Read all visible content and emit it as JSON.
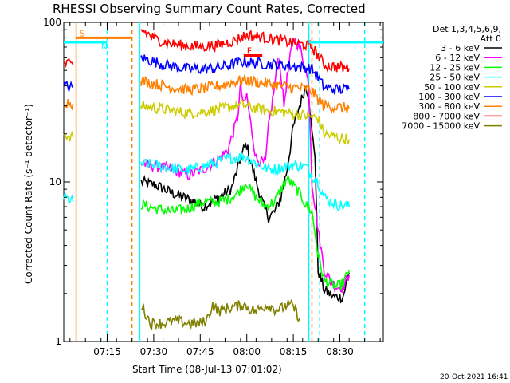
{
  "chart_data": {
    "type": "line",
    "title": "RHESSI Observing Summary Count Rates, Corrected",
    "xlabel": "Start Time (08-Jul-13 07:01:02)",
    "ylabel": "Corrected Count Rate (s⁻¹ detector⁻¹)",
    "yscale": "log",
    "ylim": [
      1,
      100
    ],
    "xlim_minutes": [
      0,
      103
    ],
    "xticks": [
      "07:15",
      "07:30",
      "07:45",
      "08:00",
      "08:15",
      "08:30"
    ],
    "xtick_minutes": [
      14,
      29,
      44,
      59,
      74,
      89
    ],
    "yticks": [
      "1",
      "10",
      "100"
    ],
    "yticks_values": [
      1,
      10,
      100
    ],
    "legend": {
      "header": [
        "Det 1,3,4,5,6,9,",
        "Att 0"
      ],
      "placement": "right"
    },
    "generated": "20-Oct-2021 16:41",
    "series": [
      {
        "name": "3 - 6 keV",
        "color": "#000000",
        "points": [
          [
            25,
            10
          ],
          [
            30,
            9.5
          ],
          [
            35,
            8.5
          ],
          [
            40,
            7.8
          ],
          [
            45,
            7
          ],
          [
            50,
            8
          ],
          [
            54,
            9
          ],
          [
            56,
            12
          ],
          [
            58,
            16
          ],
          [
            59,
            17
          ],
          [
            60,
            14
          ],
          [
            62,
            10
          ],
          [
            64,
            7.5
          ],
          [
            66,
            6
          ],
          [
            68,
            6.5
          ],
          [
            70,
            8
          ],
          [
            72,
            12
          ],
          [
            74,
            22
          ],
          [
            76,
            30
          ],
          [
            78,
            40
          ],
          [
            79,
            35
          ],
          [
            80,
            20
          ],
          [
            81,
            15
          ],
          [
            82,
            2.8
          ],
          [
            84,
            2.1
          ],
          [
            87,
            1.9
          ],
          [
            90,
            1.9
          ],
          [
            92,
            2.7
          ]
        ]
      },
      {
        "name": "6 - 12 keV",
        "color": "#ff00ff",
        "points": [
          [
            25,
            13
          ],
          [
            30,
            12.5
          ],
          [
            35,
            12
          ],
          [
            40,
            11
          ],
          [
            45,
            12
          ],
          [
            50,
            14
          ],
          [
            53,
            16
          ],
          [
            56,
            25
          ],
          [
            57,
            40
          ],
          [
            58,
            30
          ],
          [
            59,
            35
          ],
          [
            60,
            25
          ],
          [
            62,
            14
          ],
          [
            65,
            13
          ],
          [
            66,
            22
          ],
          [
            68,
            40
          ],
          [
            69,
            60
          ],
          [
            70,
            48
          ],
          [
            71,
            30
          ],
          [
            72,
            45
          ],
          [
            73,
            60
          ],
          [
            74,
            80
          ],
          [
            76,
            70
          ],
          [
            77,
            60
          ],
          [
            78,
            50
          ],
          [
            79,
            40
          ],
          [
            80,
            10
          ],
          [
            82,
            5
          ],
          [
            84,
            2.8
          ],
          [
            86,
            2.4
          ],
          [
            88,
            2.2
          ],
          [
            90,
            2.2
          ],
          [
            92,
            2.6
          ]
        ]
      },
      {
        "name": "12 - 25 keV",
        "color": "#00ff00",
        "points": [
          [
            25,
            7.2
          ],
          [
            30,
            6.8
          ],
          [
            35,
            6.5
          ],
          [
            40,
            6.8
          ],
          [
            45,
            7.5
          ],
          [
            50,
            7.5
          ],
          [
            53,
            7.8
          ],
          [
            56,
            8.5
          ],
          [
            58,
            9.5
          ],
          [
            59,
            10
          ],
          [
            60,
            9
          ],
          [
            62,
            8
          ],
          [
            65,
            7
          ],
          [
            68,
            7.5
          ],
          [
            70,
            9
          ],
          [
            72,
            10.5
          ],
          [
            74,
            9.5
          ],
          [
            76,
            8.5
          ],
          [
            78,
            7.2
          ],
          [
            80,
            6.5
          ],
          [
            82,
            3.5
          ],
          [
            84,
            2.4
          ],
          [
            86,
            2.3
          ],
          [
            88,
            2.2
          ],
          [
            90,
            2.3
          ],
          [
            92,
            2.8
          ]
        ]
      },
      {
        "name": "25 - 50 keV",
        "color": "#00ffff",
        "points": [
          [
            0,
            8
          ],
          [
            3,
            7.5
          ],
          [
            25,
            13
          ],
          [
            30,
            12.8
          ],
          [
            35,
            12.2
          ],
          [
            40,
            11.8
          ],
          [
            45,
            12.5
          ],
          [
            50,
            13.5
          ],
          [
            55,
            14.2
          ],
          [
            58,
            14.5
          ],
          [
            60,
            13.8
          ],
          [
            63,
            12.8
          ],
          [
            66,
            12
          ],
          [
            70,
            12.2
          ],
          [
            74,
            12.8
          ],
          [
            78,
            12.5
          ],
          [
            80,
            11
          ],
          [
            82,
            10
          ],
          [
            84,
            8
          ],
          [
            88,
            7.2
          ],
          [
            92,
            7
          ]
        ]
      },
      {
        "name": "50 - 100 keV",
        "color": "#cccc00",
        "points": [
          [
            0,
            20
          ],
          [
            3,
            19
          ],
          [
            25,
            30
          ],
          [
            30,
            29
          ],
          [
            35,
            28
          ],
          [
            40,
            27
          ],
          [
            45,
            27.5
          ],
          [
            50,
            28.5
          ],
          [
            55,
            30
          ],
          [
            58,
            30.5
          ],
          [
            60,
            29.5
          ],
          [
            65,
            28
          ],
          [
            70,
            27.5
          ],
          [
            74,
            26.8
          ],
          [
            78,
            26
          ],
          [
            82,
            25
          ],
          [
            84,
            20
          ],
          [
            88,
            19
          ],
          [
            92,
            18.5
          ]
        ]
      },
      {
        "name": "100 - 300 keV",
        "color": "#0000ff",
        "points": [
          [
            0,
            40
          ],
          [
            3,
            39
          ],
          [
            25,
            60
          ],
          [
            30,
            56
          ],
          [
            35,
            53
          ],
          [
            40,
            51
          ],
          [
            45,
            51
          ],
          [
            50,
            52
          ],
          [
            55,
            55
          ],
          [
            58,
            57
          ],
          [
            60,
            56
          ],
          [
            65,
            55
          ],
          [
            70,
            54
          ],
          [
            74,
            53
          ],
          [
            78,
            52
          ],
          [
            80,
            51
          ],
          [
            82,
            45
          ],
          [
            84,
            39
          ],
          [
            88,
            38
          ],
          [
            92,
            38
          ]
        ]
      },
      {
        "name": "300 - 800 keV",
        "color": "#ff8000",
        "points": [
          [
            0,
            32
          ],
          [
            3,
            31
          ],
          [
            25,
            43
          ],
          [
            30,
            41
          ],
          [
            35,
            39
          ],
          [
            40,
            38
          ],
          [
            45,
            38.5
          ],
          [
            50,
            40
          ],
          [
            55,
            42.5
          ],
          [
            58,
            43.5
          ],
          [
            60,
            43
          ],
          [
            65,
            41.5
          ],
          [
            70,
            40
          ],
          [
            74,
            39
          ],
          [
            78,
            38.5
          ],
          [
            80,
            37
          ],
          [
            82,
            33
          ],
          [
            84,
            30
          ],
          [
            88,
            29.5
          ],
          [
            92,
            29
          ]
        ]
      },
      {
        "name": "800 - 7000 keV",
        "color": "#ff0000",
        "points": [
          [
            0,
            55
          ],
          [
            3,
            54
          ],
          [
            25,
            90
          ],
          [
            30,
            78
          ],
          [
            35,
            73
          ],
          [
            40,
            71
          ],
          [
            45,
            70.5
          ],
          [
            50,
            72
          ],
          [
            55,
            77
          ],
          [
            58,
            82
          ],
          [
            60,
            83
          ],
          [
            65,
            80
          ],
          [
            70,
            77
          ],
          [
            74,
            74
          ],
          [
            78,
            72
          ],
          [
            80,
            70
          ],
          [
            82,
            62
          ],
          [
            84,
            54
          ],
          [
            88,
            52.5
          ],
          [
            92,
            51.5
          ]
        ]
      },
      {
        "name": "7000 - 15000 keV",
        "color": "#808000",
        "points": [
          [
            25,
            1.7
          ],
          [
            28,
            1.3
          ],
          [
            32,
            1.3
          ],
          [
            36,
            1.35
          ],
          [
            40,
            1.3
          ],
          [
            44,
            1.3
          ],
          [
            46,
            1.35
          ],
          [
            48,
            1.7
          ],
          [
            50,
            1.55
          ],
          [
            52,
            1.6
          ],
          [
            55,
            1.65
          ],
          [
            58,
            1.7
          ],
          [
            60,
            1.6
          ],
          [
            62,
            1.55
          ],
          [
            64,
            1.65
          ],
          [
            66,
            1.7
          ],
          [
            68,
            1.6
          ],
          [
            70,
            1.6
          ],
          [
            72,
            1.7
          ],
          [
            74,
            1.65
          ],
          [
            76,
            1.4
          ]
        ]
      }
    ],
    "bars": [
      {
        "label": "S",
        "color": "#ff8000",
        "x": [
          4,
          22
        ],
        "y": 80
      },
      {
        "label": "N",
        "color": "#00ffff",
        "x": [
          -5,
          14
        ],
        "y": 75
      },
      {
        "label": "F",
        "color": "#ff0000",
        "x": [
          58,
          64
        ],
        "y": 62
      },
      {
        "label": "",
        "color": "#00ffff",
        "x": [
          79,
          103
        ],
        "y": 75
      }
    ],
    "vlines": [
      {
        "x": 4,
        "color": "#ff8000",
        "style": "solid"
      },
      {
        "x": 14,
        "color": "#00ffff",
        "style": "dashed"
      },
      {
        "x": 22,
        "color": "#ff8000",
        "style": "dashed"
      },
      {
        "x": 24.5,
        "color": "#00ffff",
        "style": "solid"
      },
      {
        "x": 79,
        "color": "#00ffff",
        "style": "solid"
      },
      {
        "x": 80,
        "color": "#ff8000",
        "style": "dashed"
      },
      {
        "x": 82.5,
        "color": "#00ffff",
        "style": "dashed"
      },
      {
        "x": 97,
        "color": "#00ffff",
        "style": "dashed"
      }
    ]
  }
}
